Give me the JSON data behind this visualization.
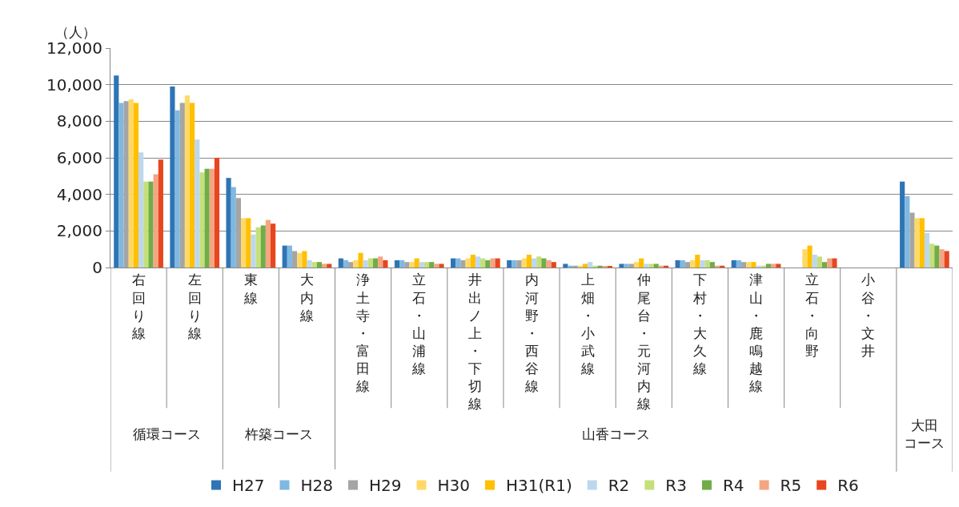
{
  "chart_data": {
    "type": "bar",
    "ylabel": "（人）",
    "categories": [
      "右回り線",
      "左回り線",
      "東線",
      "大内線",
      "浄土寺・富田線",
      "立石・山浦線",
      "井出ノ上・下切線",
      "内河野・西谷線",
      "上畑・小武線",
      "仲尾台・元河内線",
      "下村・大久線",
      "津山・鹿鳴越線",
      "立石・向野",
      "小谷・文井",
      null
    ],
    "annotations": [
      "循環コース",
      "杵築コース",
      "山香コース",
      "大田コース"
    ],
    "series": [
      {
        "name": "H27",
        "color": "#2e75b6",
        "values": [
          10500,
          9900,
          4900,
          1200,
          500,
          400,
          500,
          400,
          200,
          200,
          400,
          400,
          null,
          null,
          4700
        ]
      },
      {
        "name": "H28",
        "color": "#7fb8e0",
        "values": [
          9000,
          8600,
          4400,
          1200,
          400,
          400,
          500,
          400,
          100,
          200,
          400,
          400,
          null,
          null,
          3900
        ]
      },
      {
        "name": "H29",
        "color": "#a5a5a5",
        "values": [
          9100,
          9000,
          3800,
          900,
          300,
          300,
          400,
          400,
          100,
          200,
          300,
          300,
          null,
          null,
          3000
        ]
      },
      {
        "name": "H30",
        "color": "#ffd966",
        "values": [
          9200,
          9400,
          2700,
          800,
          400,
          300,
          500,
          500,
          100,
          300,
          400,
          300,
          1000,
          null,
          2700
        ]
      },
      {
        "name": "H31(R1)",
        "color": "#ffc000",
        "values": [
          9000,
          9000,
          2700,
          900,
          800,
          500,
          700,
          700,
          200,
          500,
          700,
          300,
          1200,
          null,
          2700
        ]
      },
      {
        "name": "R2",
        "color": "#bdd7ee",
        "values": [
          6300,
          7000,
          1800,
          400,
          400,
          300,
          600,
          500,
          300,
          200,
          400,
          100,
          700,
          null,
          1900
        ]
      },
      {
        "name": "R3",
        "color": "#c5e07a",
        "values": [
          4700,
          5200,
          2200,
          300,
          500,
          300,
          500,
          600,
          100,
          200,
          400,
          100,
          600,
          null,
          1300
        ]
      },
      {
        "name": "R4",
        "color": "#70ad47",
        "values": [
          4700,
          5400,
          2300,
          300,
          500,
          300,
          400,
          500,
          100,
          200,
          300,
          200,
          300,
          null,
          1200
        ]
      },
      {
        "name": "R5",
        "color": "#f4a582",
        "values": [
          5100,
          5400,
          2600,
          200,
          600,
          200,
          500,
          400,
          50,
          100,
          100,
          200,
          500,
          null,
          1000
        ]
      },
      {
        "name": "R6",
        "color": "#e8461e",
        "values": [
          5900,
          6000,
          2400,
          200,
          400,
          200,
          500,
          300,
          50,
          100,
          100,
          200,
          500,
          null,
          900
        ]
      }
    ],
    "ylim": [
      0,
      12000
    ],
    "yticks": [
      {
        "value": 0,
        "label": "0"
      },
      {
        "value": 2000,
        "label": "2,000"
      },
      {
        "value": 4000,
        "label": "4,000"
      },
      {
        "value": 6000,
        "label": "6,000"
      },
      {
        "value": 8000,
        "label": "8,000"
      },
      {
        "value": 10000,
        "label": "10,000"
      },
      {
        "value": 12000,
        "label": "12,000"
      }
    ],
    "grid": "y",
    "legend": "bottom"
  }
}
